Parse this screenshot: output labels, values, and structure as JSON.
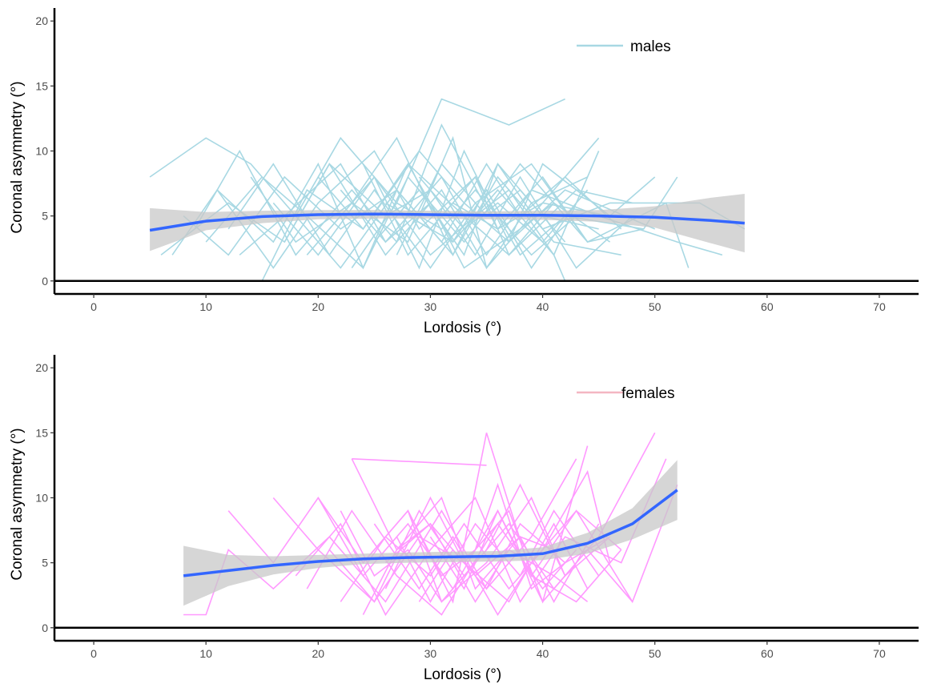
{
  "chart_data": [
    {
      "type": "line",
      "xlabel": "Lordosis (°)",
      "ylabel": "Coronal asymmetry (°)",
      "xlim": [
        -3.5,
        73.5
      ],
      "ylim": [
        -1,
        21
      ],
      "xticks": [
        0,
        10,
        20,
        30,
        40,
        50,
        60,
        70
      ],
      "yticks": [
        0,
        5,
        10,
        15,
        20
      ],
      "grid": false,
      "hline": 0,
      "legend": {
        "label": "males",
        "placement": "top-right",
        "color": "#a8d8e3"
      },
      "colors": {
        "series": "#a8d8e3",
        "smooth": "#3366ff",
        "band": "#c8c8c8"
      },
      "smooth": {
        "x": [
          5,
          10,
          15,
          20,
          25,
          30,
          35,
          40,
          45,
          50,
          55,
          58
        ],
        "y": [
          3.9,
          4.6,
          4.95,
          5.1,
          5.15,
          5.1,
          5.05,
          5.05,
          5.0,
          4.9,
          4.65,
          4.45
        ],
        "lower": [
          2.3,
          3.9,
          4.45,
          4.75,
          4.8,
          4.8,
          4.75,
          4.7,
          4.55,
          4.1,
          2.9,
          2.2
        ],
        "upper": [
          5.6,
          5.3,
          5.4,
          5.45,
          5.45,
          5.4,
          5.35,
          5.4,
          5.45,
          5.75,
          6.4,
          6.7
        ]
      },
      "trajectories": [
        {
          "x": [
            5,
            10,
            14,
            18,
            22,
            27,
            31,
            37,
            42
          ],
          "y": [
            8,
            11,
            9,
            5,
            11,
            6,
            14,
            12,
            14
          ]
        },
        {
          "x": [
            7,
            11,
            16,
            20,
            24,
            28,
            33,
            38,
            44
          ],
          "y": [
            2,
            7,
            3,
            9,
            1,
            8,
            3,
            9,
            3
          ]
        },
        {
          "x": [
            8,
            12,
            17,
            22,
            27,
            32,
            36,
            41,
            47
          ],
          "y": [
            5,
            2,
            8,
            4,
            7,
            2,
            8,
            3,
            2
          ]
        },
        {
          "x": [
            9,
            13,
            18,
            23,
            27,
            31,
            36,
            40,
            45
          ],
          "y": [
            4,
            10,
            2,
            7,
            3,
            12,
            4,
            6,
            11
          ]
        },
        {
          "x": [
            6,
            12,
            17,
            21,
            26,
            31,
            35,
            40,
            46,
            50
          ],
          "y": [
            2,
            6,
            3,
            9,
            2,
            7,
            1,
            6,
            5,
            8
          ]
        },
        {
          "x": [
            10,
            15,
            19,
            24,
            28,
            33,
            37,
            43,
            48
          ],
          "y": [
            3,
            8,
            5,
            1,
            9,
            5,
            2,
            7,
            6
          ]
        },
        {
          "x": [
            11,
            16,
            20,
            25,
            29,
            34,
            38,
            42,
            49,
            52
          ],
          "y": [
            7,
            1,
            6,
            10,
            4,
            8,
            2,
            5,
            4,
            8
          ]
        },
        {
          "x": [
            12,
            16,
            21,
            25,
            30,
            34,
            39,
            44,
            51,
            53
          ],
          "y": [
            4,
            9,
            2,
            7,
            1,
            6,
            9,
            3,
            6,
            1
          ]
        },
        {
          "x": [
            13,
            17,
            22,
            26,
            31,
            35,
            39,
            45,
            52,
            56
          ],
          "y": [
            2,
            5,
            9,
            3,
            8,
            2,
            7,
            5,
            3,
            2
          ]
        },
        {
          "x": [
            14,
            18,
            23,
            27,
            32,
            36,
            40,
            46,
            54,
            58
          ],
          "y": [
            8,
            3,
            6,
            11,
            2,
            9,
            4,
            6,
            6,
            4
          ]
        },
        {
          "x": [
            15,
            19,
            24,
            28,
            32,
            36,
            41,
            42
          ],
          "y": [
            0,
            7,
            4,
            9,
            3,
            7,
            2,
            0
          ]
        },
        {
          "x": [
            16,
            20,
            25,
            29,
            33,
            37,
            42,
            50
          ],
          "y": [
            6,
            2,
            8,
            1,
            10,
            3,
            7,
            4
          ]
        },
        {
          "x": [
            17,
            21,
            26,
            30,
            34,
            38,
            43,
            48
          ],
          "y": [
            3,
            9,
            5,
            7,
            2,
            8,
            1,
            5
          ]
        },
        {
          "x": [
            18,
            22,
            27,
            31,
            35,
            38,
            42,
            47
          ],
          "y": [
            5,
            1,
            7,
            3,
            9,
            5,
            8,
            4
          ]
        },
        {
          "x": [
            19,
            23,
            28,
            32,
            35,
            39,
            44
          ],
          "y": [
            2,
            6,
            3,
            11,
            1,
            6,
            8
          ]
        },
        {
          "x": [
            20,
            24,
            29,
            33,
            37,
            40,
            46
          ],
          "y": [
            8,
            4,
            10,
            6,
            3,
            9,
            5
          ]
        },
        {
          "x": [
            21,
            25,
            30,
            34,
            37,
            41,
            45
          ],
          "y": [
            4,
            8,
            2,
            5,
            7,
            2,
            10
          ]
        },
        {
          "x": [
            22,
            26,
            30,
            33,
            38,
            41
          ],
          "y": [
            7,
            3,
            6,
            1,
            4,
            6
          ]
        },
        {
          "x": [
            23,
            27,
            31,
            34,
            39,
            43
          ],
          "y": [
            1,
            6,
            4,
            7,
            2,
            5
          ]
        },
        {
          "x": [
            24,
            28,
            32,
            36,
            40,
            44,
            49
          ],
          "y": [
            9,
            2,
            6,
            4,
            8,
            3,
            4
          ]
        },
        {
          "x": [
            25,
            29,
            33,
            36,
            40,
            45
          ],
          "y": [
            3,
            7,
            2,
            9,
            5,
            4
          ]
        },
        {
          "x": [
            26,
            30,
            34,
            37,
            41,
            46
          ],
          "y": [
            6,
            4,
            8,
            2,
            6,
            3
          ]
        },
        {
          "x": [
            27,
            31,
            35,
            38,
            42
          ],
          "y": [
            2,
            9,
            5,
            7,
            3
          ]
        },
        {
          "x": [
            28,
            32,
            35,
            39,
            43
          ],
          "y": [
            5,
            3,
            7,
            1,
            6
          ]
        },
        {
          "x": [
            29,
            33,
            36,
            40,
            44
          ],
          "y": [
            8,
            4,
            6,
            3,
            7
          ]
        }
      ]
    },
    {
      "type": "line",
      "xlabel": "Lordosis (°)",
      "ylabel": "Coronal asymmetry (°)",
      "xlim": [
        -3.5,
        73.5
      ],
      "ylim": [
        -1,
        21
      ],
      "xticks": [
        0,
        10,
        20,
        30,
        40,
        50,
        60,
        70
      ],
      "yticks": [
        0,
        5,
        10,
        15,
        20
      ],
      "grid": false,
      "hline": 0,
      "legend": {
        "label": "females",
        "placement": "top-right",
        "color": "#f4b6c2"
      },
      "colors": {
        "series": "#ff99ff",
        "smooth": "#3366ff",
        "band": "#c8c8c8"
      },
      "smooth": {
        "x": [
          8,
          12,
          16,
          20,
          24,
          28,
          32,
          36,
          40,
          44,
          48,
          52
        ],
        "y": [
          4.0,
          4.4,
          4.8,
          5.1,
          5.3,
          5.4,
          5.45,
          5.5,
          5.7,
          6.5,
          8.0,
          10.6
        ],
        "lower": [
          1.7,
          3.2,
          4.1,
          4.6,
          4.9,
          5.0,
          5.05,
          5.1,
          5.2,
          5.7,
          6.8,
          8.3
        ],
        "upper": [
          6.3,
          5.6,
          5.5,
          5.6,
          5.7,
          5.8,
          5.85,
          5.9,
          6.2,
          7.3,
          9.2,
          12.9
        ]
      },
      "trajectories": [
        {
          "x": [
            8,
            10,
            12,
            16,
            21,
            26,
            31,
            35,
            39,
            43
          ],
          "y": [
            1,
            1,
            6,
            3,
            7,
            2,
            9,
            3,
            7,
            13
          ]
        },
        {
          "x": [
            12,
            16,
            20,
            24,
            28,
            32,
            36,
            40,
            44
          ],
          "y": [
            9,
            5,
            10,
            4,
            8,
            3,
            9,
            2,
            14
          ]
        },
        {
          "x": [
            16,
            20,
            25,
            29,
            33,
            37,
            41,
            45,
            50
          ],
          "y": [
            10,
            6,
            2,
            9,
            4,
            8,
            3,
            7,
            15
          ]
        },
        {
          "x": [
            18,
            22,
            26,
            30,
            34,
            38,
            42,
            47,
            51
          ],
          "y": [
            4,
            8,
            1,
            6,
            10,
            2,
            7,
            5,
            13
          ]
        },
        {
          "x": [
            20,
            24,
            28,
            32,
            35,
            39,
            43,
            48,
            52
          ],
          "y": [
            10,
            5,
            9,
            2,
            15,
            4,
            9,
            2,
            11
          ]
        },
        {
          "x": [
            22,
            26,
            30,
            33,
            37,
            40,
            44,
            46
          ],
          "y": [
            2,
            7,
            4,
            8,
            3,
            6,
            12,
            5
          ]
        },
        {
          "x": [
            23,
            27,
            31,
            34,
            38,
            41,
            45
          ],
          "y": [
            13,
            6,
            10,
            3,
            7,
            2,
            8
          ]
        },
        {
          "x": [
            24,
            28,
            31,
            35,
            38,
            42,
            46
          ],
          "y": [
            5,
            9,
            2,
            6,
            11,
            4,
            7
          ]
        },
        {
          "x": [
            25,
            29,
            32,
            36,
            39,
            43,
            47
          ],
          "y": [
            8,
            3,
            7,
            1,
            5,
            9,
            6
          ]
        },
        {
          "x": [
            26,
            30,
            33,
            37,
            40,
            44,
            48
          ],
          "y": [
            3,
            10,
            5,
            9,
            2,
            6,
            2
          ]
        },
        {
          "x": [
            27,
            30,
            34,
            38,
            41,
            45
          ],
          "y": [
            7,
            2,
            8,
            4,
            9,
            4
          ]
        },
        {
          "x": [
            21,
            25,
            29,
            33,
            37,
            41,
            44
          ],
          "y": [
            6,
            2,
            7,
            5,
            2,
            8,
            3
          ]
        },
        {
          "x": [
            19,
            23,
            27,
            31,
            36,
            40,
            43
          ],
          "y": [
            3,
            9,
            4,
            1,
            8,
            3,
            6
          ]
        },
        {
          "x": [
            24,
            27,
            30,
            34,
            37,
            41,
            44
          ],
          "y": [
            1,
            6,
            8,
            2,
            6,
            4,
            2
          ]
        },
        {
          "x": [
            28,
            31,
            34,
            36,
            39,
            42
          ],
          "y": [
            9,
            4,
            6,
            11,
            3,
            5
          ]
        },
        {
          "x": [
            29,
            32,
            35,
            38,
            42,
            46
          ],
          "y": [
            2,
            6,
            3,
            8,
            5,
            7
          ]
        },
        {
          "x": [
            30,
            33,
            36,
            39,
            43,
            47
          ],
          "y": [
            7,
            3,
            9,
            4,
            2,
            6
          ]
        },
        {
          "x": [
            23,
            35
          ],
          "y": [
            13,
            12.5
          ]
        },
        {
          "x": [
            26,
            30,
            34,
            38,
            41
          ],
          "y": [
            5,
            8,
            4,
            7,
            6
          ]
        },
        {
          "x": [
            22,
            25,
            28,
            31,
            35,
            39,
            42
          ],
          "y": [
            9,
            4,
            6,
            2,
            5,
            10,
            4
          ]
        }
      ]
    }
  ]
}
